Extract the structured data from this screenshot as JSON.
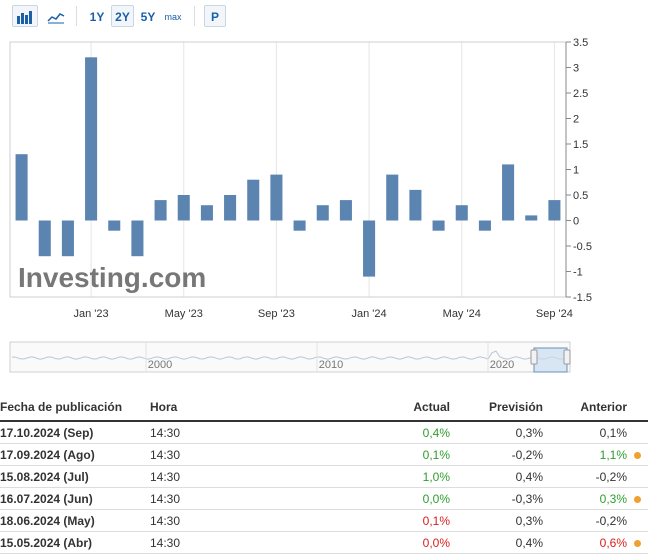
{
  "toolbar": {
    "periods": [
      "1Y",
      "2Y",
      "5Y",
      "max"
    ],
    "active_period": "2Y",
    "p_label": "P"
  },
  "chart_data": {
    "type": "bar",
    "categories": [
      "Oct 2022",
      "Nov 2022",
      "Dec 2022",
      "Jan 2023",
      "Feb 2023",
      "Mar 2023",
      "Apr 2023",
      "May 2023",
      "Jun 2023",
      "Jul 2023",
      "Aug 2023",
      "Sep 2023",
      "Oct 2023",
      "Nov 2023",
      "Dec 2023",
      "Jan 2024",
      "Feb 2024",
      "Mar 2024",
      "Apr 2024",
      "May 2024",
      "Jun 2024",
      "Jul 2024",
      "Aug 2024",
      "Sep 2024"
    ],
    "values": [
      1.3,
      -0.7,
      -0.7,
      3.2,
      -0.2,
      -0.7,
      0.4,
      0.5,
      0.3,
      0.5,
      0.8,
      0.9,
      -0.2,
      0.3,
      0.4,
      -1.1,
      0.9,
      0.6,
      -0.2,
      0.3,
      -0.2,
      1.1,
      0.1,
      0.4
    ],
    "x_tick_labels": [
      "Jan '23",
      "May '23",
      "Sep '23",
      "Jan '24",
      "May '24",
      "Sep '24"
    ],
    "y_tick_labels": [
      "3.5",
      "3",
      "2.5",
      "2",
      "1.5",
      "1",
      "0.5",
      "0",
      "-0.5",
      "-1",
      "-1.5"
    ],
    "ylim": [
      -1.5,
      3.5
    ],
    "bar_color": "#5b84b1",
    "grid": "vertical",
    "watermark": "Investing.com",
    "navigator_labels": [
      "2000",
      "2010",
      "2020"
    ]
  },
  "table": {
    "headers": [
      "Fecha de publicación",
      "Hora",
      "Actual",
      "Previsión",
      "Anterior"
    ],
    "rows": [
      {
        "date": "17.10.2024 (Sep)",
        "time": "14:30",
        "actual": "0,4%",
        "actual_color": "pos",
        "forecast": "0,3%",
        "previous": "0,1%",
        "previous_color": "",
        "dot": false
      },
      {
        "date": "17.09.2024 (Ago)",
        "time": "14:30",
        "actual": "0,1%",
        "actual_color": "pos",
        "forecast": "-0,2%",
        "previous": "1,1%",
        "previous_color": "pos",
        "dot": true
      },
      {
        "date": "15.08.2024 (Jul)",
        "time": "14:30",
        "actual": "1,0%",
        "actual_color": "pos",
        "forecast": "0,4%",
        "previous": "-0,2%",
        "previous_color": "",
        "dot": false
      },
      {
        "date": "16.07.2024 (Jun)",
        "time": "14:30",
        "actual": "0,0%",
        "actual_color": "pos",
        "forecast": "-0,3%",
        "previous": "0,3%",
        "previous_color": "pos",
        "dot": true
      },
      {
        "date": "18.06.2024 (May)",
        "time": "14:30",
        "actual": "0,1%",
        "actual_color": "neg",
        "forecast": "0,3%",
        "previous": "-0,2%",
        "previous_color": "",
        "dot": false
      },
      {
        "date": "15.05.2024 (Abr)",
        "time": "14:30",
        "actual": "0,0%",
        "actual_color": "neg",
        "forecast": "0,4%",
        "previous": "0,6%",
        "previous_color": "neg",
        "dot": true
      }
    ]
  }
}
